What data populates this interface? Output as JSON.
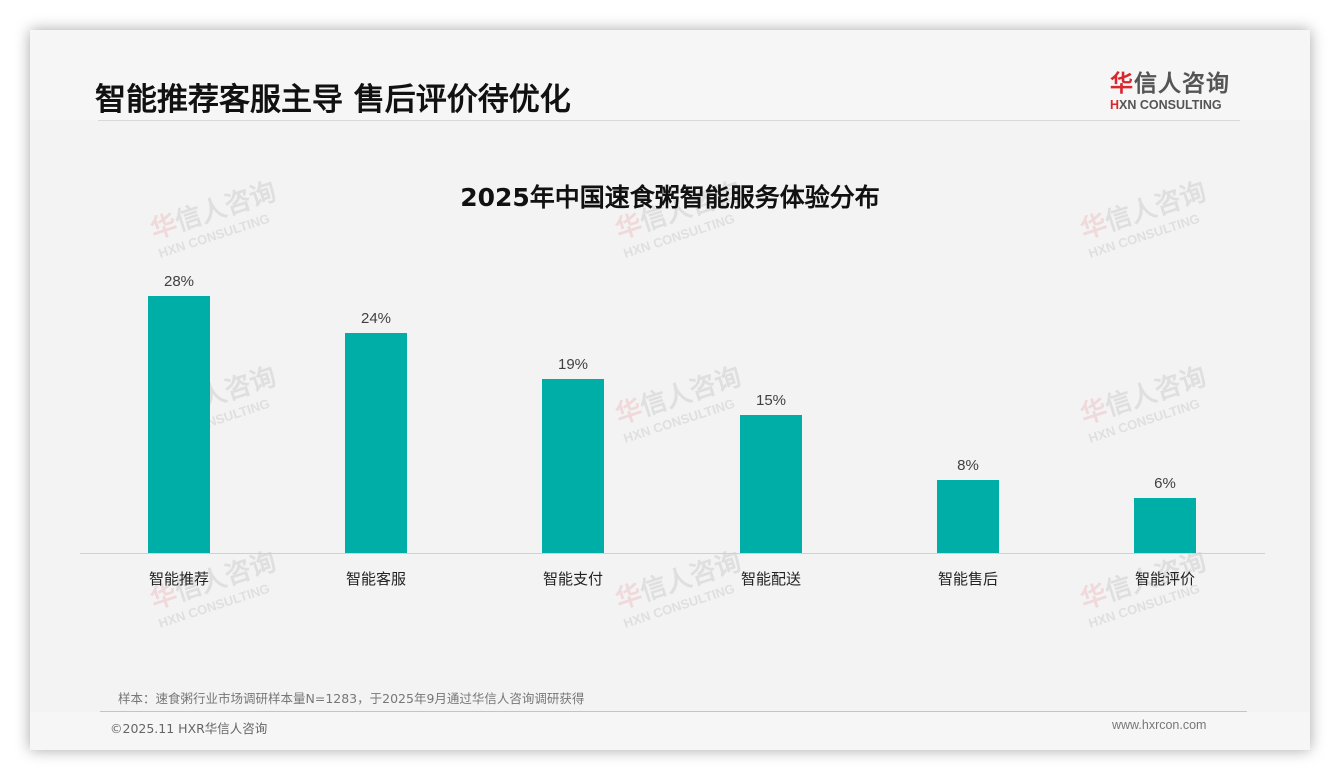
{
  "header": {
    "title": "智能推荐客服主导 售后评价待优化",
    "logo": {
      "cn_first": "华",
      "cn_rest": "信人咨询",
      "en_first": "H",
      "en_rest": "XN CONSULTING"
    }
  },
  "watermark": {
    "cn_first": "华",
    "cn_rest": "信人咨询",
    "en": "HXN CONSULTING"
  },
  "colors": {
    "bar": "#00aea8",
    "brand_red": "#d9272e"
  },
  "chart_data": {
    "type": "bar",
    "title": "2025年中国速食粥智能服务体验分布",
    "categories": [
      "智能推荐",
      "智能客服",
      "智能支付",
      "智能配送",
      "智能售后",
      "智能评价"
    ],
    "values": [
      28,
      24,
      19,
      15,
      8,
      6
    ],
    "value_labels": [
      "28%",
      "24%",
      "19%",
      "15%",
      "8%",
      "6%"
    ],
    "unit": "%",
    "xlabel": "",
    "ylabel": "",
    "ylim": [
      0,
      30
    ],
    "grid": false,
    "legend": null,
    "data_labels": true
  },
  "footer": {
    "note": "样本：速食粥行业市场调研样本量N=1283，于2025年9月通过华信人咨询调研获得",
    "copyright": "©2025.11 HXR华信人咨询",
    "website": "www.hxrcon.com"
  }
}
